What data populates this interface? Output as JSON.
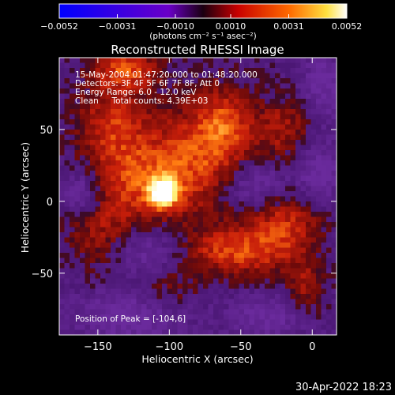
{
  "chart_data": {
    "type": "heatmap",
    "title": "Reconstructed RHESSI Image",
    "xlabel": "Heliocentric X (arcsec)",
    "ylabel": "Heliocentric Y (arcsec)",
    "xlim": [
      -177,
      17
    ],
    "ylim": [
      -93,
      100
    ],
    "x_ticks": [
      -150,
      -100,
      -50,
      0
    ],
    "y_ticks": [
      -50,
      0,
      50
    ],
    "x_tick_labels": [
      "−150",
      "−100",
      "−50",
      "0"
    ],
    "y_tick_labels": [
      "−50",
      "0",
      "50"
    ],
    "annotations": [
      "15-May-2004 01:47:20.000 to 01:48:20.000",
      "Detectors: 3F 4F 5F 6F 7F 8F, Att 0",
      "Energy Range: 6.0 - 12.0 keV",
      "Clean     Total counts: 4.39E+03"
    ],
    "peak_label": "Position of Peak = [-104,6]",
    "peak": [
      -104,
      6
    ],
    "colorbar": {
      "range": [
        -0.0052,
        0.0052
      ],
      "tick_values": [
        -0.0052,
        -0.0031,
        -0.001,
        0.001,
        0.0031,
        0.0052
      ],
      "tick_labels": [
        "−0.0052",
        "−0.0031",
        "−0.0010",
        "0.0010",
        "0.0031",
        "0.0052"
      ],
      "unit_label": "(photons cm⁻² s⁻¹ asec⁻²)"
    },
    "colors": {
      "purple": "#6a2a9c",
      "red": "#c81e0a",
      "orange": "#ff7a10",
      "yellow": "#fff07a"
    },
    "blobs": [
      {
        "x": -104,
        "y": 6,
        "sx": 7,
        "sy": 7,
        "a": 0.0052
      },
      {
        "x": -120,
        "y": 15,
        "sx": 24,
        "sy": 22,
        "a": 0.0028
      },
      {
        "x": -78,
        "y": 32,
        "sx": 22,
        "sy": 28,
        "a": 0.0026
      },
      {
        "x": -140,
        "y": 55,
        "sx": 18,
        "sy": 20,
        "a": 0.0024
      },
      {
        "x": -130,
        "y": 92,
        "sx": 16,
        "sy": 10,
        "a": 0.003
      },
      {
        "x": -60,
        "y": 55,
        "sx": 14,
        "sy": 18,
        "a": 0.0022
      },
      {
        "x": -20,
        "y": 50,
        "sx": 14,
        "sy": 16,
        "a": 0.002
      },
      {
        "x": -55,
        "y": -35,
        "sx": 26,
        "sy": 12,
        "a": 0.003
      },
      {
        "x": -20,
        "y": -15,
        "sx": 18,
        "sy": 16,
        "a": 0.0026
      },
      {
        "x": -150,
        "y": -20,
        "sx": 16,
        "sy": 20,
        "a": 0.0018
      },
      {
        "x": -5,
        "y": -60,
        "sx": 10,
        "sy": 14,
        "a": 0.0018
      },
      {
        "x": -100,
        "y": -60,
        "sx": 14,
        "sy": 10,
        "a": 0.0012
      },
      {
        "x": -160,
        "y": 5,
        "sx": 10,
        "sy": 12,
        "a": -0.0022
      },
      {
        "x": -40,
        "y": 10,
        "sx": 16,
        "sy": 12,
        "a": -0.002
      },
      {
        "x": 5,
        "y": 20,
        "sx": 12,
        "sy": 14,
        "a": -0.0018
      },
      {
        "x": -115,
        "y": -35,
        "sx": 20,
        "sy": 12,
        "a": -0.0016
      },
      {
        "x": -130,
        "y": -80,
        "sx": 24,
        "sy": 12,
        "a": -0.0018
      },
      {
        "x": -30,
        "y": -80,
        "sx": 18,
        "sy": 10,
        "a": -0.0016
      },
      {
        "x": 8,
        "y": 80,
        "sx": 10,
        "sy": 16,
        "a": -0.0016
      }
    ]
  },
  "timestamp": "30-Apr-2022 18:23"
}
